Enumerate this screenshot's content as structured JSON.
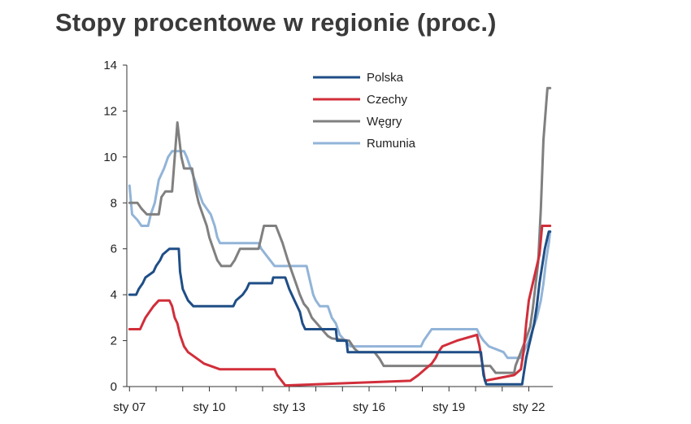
{
  "chart_data": {
    "type": "line",
    "title": "Stopy procentowe w regionie (proc.)",
    "xlabel": "",
    "ylabel": "",
    "x_range": [
      2007.0,
      2022.8
    ],
    "ylim": [
      0,
      14
    ],
    "yticks": [
      0,
      2,
      4,
      6,
      8,
      10,
      12,
      14
    ],
    "xticks": [
      {
        "label": "sty 07",
        "value": 2007.0
      },
      {
        "label": "sty 10",
        "value": 2010.0
      },
      {
        "label": "sty 13",
        "value": 2013.0
      },
      {
        "label": "sty 16",
        "value": 2016.0
      },
      {
        "label": "sty 19",
        "value": 2019.0
      },
      {
        "label": "sty 22",
        "value": 2022.0
      }
    ],
    "grid": false,
    "legend": "top-center",
    "series": [
      {
        "name": "Polska",
        "color": "#1f4e86",
        "points": [
          [
            2007.0,
            4.0
          ],
          [
            2007.25,
            4.0
          ],
          [
            2007.35,
            4.25
          ],
          [
            2007.5,
            4.5
          ],
          [
            2007.6,
            4.75
          ],
          [
            2007.9,
            5.0
          ],
          [
            2008.0,
            5.25
          ],
          [
            2008.15,
            5.5
          ],
          [
            2008.25,
            5.75
          ],
          [
            2008.5,
            6.0
          ],
          [
            2008.85,
            6.0
          ],
          [
            2008.9,
            5.0
          ],
          [
            2009.0,
            4.25
          ],
          [
            2009.1,
            4.0
          ],
          [
            2009.2,
            3.75
          ],
          [
            2009.4,
            3.5
          ],
          [
            2010.0,
            3.5
          ],
          [
            2010.9,
            3.5
          ],
          [
            2011.0,
            3.75
          ],
          [
            2011.25,
            4.0
          ],
          [
            2011.4,
            4.25
          ],
          [
            2011.5,
            4.5
          ],
          [
            2012.35,
            4.5
          ],
          [
            2012.4,
            4.75
          ],
          [
            2012.85,
            4.75
          ],
          [
            2013.0,
            4.25
          ],
          [
            2013.1,
            4.0
          ],
          [
            2013.2,
            3.75
          ],
          [
            2013.3,
            3.5
          ],
          [
            2013.4,
            3.25
          ],
          [
            2013.5,
            2.75
          ],
          [
            2013.6,
            2.5
          ],
          [
            2014.75,
            2.5
          ],
          [
            2014.8,
            2.0
          ],
          [
            2015.15,
            2.0
          ],
          [
            2015.2,
            1.5
          ],
          [
            2020.2,
            1.5
          ],
          [
            2020.25,
            1.0
          ],
          [
            2020.3,
            0.5
          ],
          [
            2020.4,
            0.1
          ],
          [
            2021.75,
            0.1
          ],
          [
            2021.8,
            0.5
          ],
          [
            2021.9,
            1.25
          ],
          [
            2022.0,
            1.75
          ],
          [
            2022.1,
            2.25
          ],
          [
            2022.2,
            2.75
          ],
          [
            2022.3,
            3.5
          ],
          [
            2022.4,
            4.5
          ],
          [
            2022.5,
            5.25
          ],
          [
            2022.6,
            6.0
          ],
          [
            2022.7,
            6.5
          ],
          [
            2022.75,
            6.75
          ],
          [
            2022.8,
            6.75
          ]
        ]
      },
      {
        "name": "Czechy",
        "color": "#d12e3a",
        "points": [
          [
            2007.0,
            2.5
          ],
          [
            2007.4,
            2.5
          ],
          [
            2007.5,
            2.75
          ],
          [
            2007.6,
            3.0
          ],
          [
            2007.75,
            3.25
          ],
          [
            2007.9,
            3.5
          ],
          [
            2008.1,
            3.75
          ],
          [
            2008.5,
            3.75
          ],
          [
            2008.6,
            3.5
          ],
          [
            2008.7,
            3.0
          ],
          [
            2008.8,
            2.75
          ],
          [
            2008.9,
            2.25
          ],
          [
            2009.05,
            1.75
          ],
          [
            2009.2,
            1.5
          ],
          [
            2009.5,
            1.25
          ],
          [
            2009.8,
            1.0
          ],
          [
            2010.4,
            0.75
          ],
          [
            2012.45,
            0.75
          ],
          [
            2012.55,
            0.5
          ],
          [
            2012.85,
            0.05
          ],
          [
            2017.55,
            0.25
          ],
          [
            2017.85,
            0.5
          ],
          [
            2018.1,
            0.75
          ],
          [
            2018.35,
            1.0
          ],
          [
            2018.5,
            1.25
          ],
          [
            2018.6,
            1.5
          ],
          [
            2018.75,
            1.75
          ],
          [
            2019.3,
            2.0
          ],
          [
            2020.05,
            2.25
          ],
          [
            2020.15,
            1.75
          ],
          [
            2020.25,
            1.0
          ],
          [
            2020.35,
            0.25
          ],
          [
            2021.45,
            0.5
          ],
          [
            2021.7,
            0.75
          ],
          [
            2021.8,
            1.5
          ],
          [
            2021.9,
            2.75
          ],
          [
            2022.0,
            3.75
          ],
          [
            2022.15,
            4.5
          ],
          [
            2022.4,
            5.75
          ],
          [
            2022.5,
            7.0
          ],
          [
            2022.8,
            7.0
          ]
        ]
      },
      {
        "name": "Węgry",
        "color": "#808080",
        "points": [
          [
            2007.0,
            8.0
          ],
          [
            2007.3,
            8.0
          ],
          [
            2007.45,
            7.75
          ],
          [
            2007.65,
            7.5
          ],
          [
            2008.1,
            7.5
          ],
          [
            2008.2,
            8.25
          ],
          [
            2008.35,
            8.5
          ],
          [
            2008.6,
            8.5
          ],
          [
            2008.8,
            11.5
          ],
          [
            2008.95,
            10.0
          ],
          [
            2009.05,
            9.5
          ],
          [
            2009.35,
            9.5
          ],
          [
            2009.5,
            8.5
          ],
          [
            2009.6,
            8.0
          ],
          [
            2009.75,
            7.5
          ],
          [
            2009.9,
            7.0
          ],
          [
            2010.0,
            6.5
          ],
          [
            2010.15,
            6.0
          ],
          [
            2010.3,
            5.5
          ],
          [
            2010.45,
            5.25
          ],
          [
            2010.8,
            5.25
          ],
          [
            2010.95,
            5.5
          ],
          [
            2011.05,
            5.75
          ],
          [
            2011.15,
            6.0
          ],
          [
            2011.85,
            6.0
          ],
          [
            2011.95,
            6.5
          ],
          [
            2012.05,
            7.0
          ],
          [
            2012.5,
            7.0
          ],
          [
            2012.75,
            6.25
          ],
          [
            2012.95,
            5.5
          ],
          [
            2013.1,
            5.0
          ],
          [
            2013.25,
            4.5
          ],
          [
            2013.4,
            4.0
          ],
          [
            2013.55,
            3.6
          ],
          [
            2013.7,
            3.4
          ],
          [
            2013.85,
            3.0
          ],
          [
            2014.0,
            2.8
          ],
          [
            2014.15,
            2.6
          ],
          [
            2014.3,
            2.4
          ],
          [
            2014.45,
            2.2
          ],
          [
            2014.6,
            2.1
          ],
          [
            2015.25,
            2.0
          ],
          [
            2015.45,
            1.65
          ],
          [
            2015.6,
            1.5
          ],
          [
            2016.2,
            1.5
          ],
          [
            2016.4,
            1.2
          ],
          [
            2016.55,
            0.9
          ],
          [
            2020.55,
            0.9
          ],
          [
            2020.65,
            0.75
          ],
          [
            2020.75,
            0.6
          ],
          [
            2021.45,
            0.6
          ],
          [
            2021.5,
            0.9
          ],
          [
            2021.6,
            1.2
          ],
          [
            2021.7,
            1.5
          ],
          [
            2021.8,
            1.8
          ],
          [
            2021.9,
            2.1
          ],
          [
            2022.05,
            2.6
          ],
          [
            2022.15,
            3.4
          ],
          [
            2022.25,
            4.4
          ],
          [
            2022.35,
            5.4
          ],
          [
            2022.45,
            7.75
          ],
          [
            2022.55,
            10.75
          ],
          [
            2022.7,
            13.0
          ],
          [
            2022.8,
            13.0
          ]
        ]
      },
      {
        "name": "Rumunia",
        "color": "#92b4d8",
        "points": [
          [
            2007.0,
            8.75
          ],
          [
            2007.1,
            7.5
          ],
          [
            2007.3,
            7.25
          ],
          [
            2007.45,
            7.0
          ],
          [
            2007.7,
            7.0
          ],
          [
            2007.8,
            7.5
          ],
          [
            2007.95,
            8.0
          ],
          [
            2008.1,
            9.0
          ],
          [
            2008.3,
            9.5
          ],
          [
            2008.45,
            10.0
          ],
          [
            2008.6,
            10.25
          ],
          [
            2009.05,
            10.25
          ],
          [
            2009.15,
            10.0
          ],
          [
            2009.3,
            9.5
          ],
          [
            2009.45,
            9.0
          ],
          [
            2009.6,
            8.5
          ],
          [
            2009.75,
            8.0
          ],
          [
            2010.05,
            7.5
          ],
          [
            2010.2,
            7.0
          ],
          [
            2010.3,
            6.5
          ],
          [
            2010.4,
            6.25
          ],
          [
            2011.85,
            6.25
          ],
          [
            2011.95,
            6.0
          ],
          [
            2012.45,
            5.25
          ],
          [
            2013.65,
            5.25
          ],
          [
            2013.8,
            4.5
          ],
          [
            2013.9,
            4.0
          ],
          [
            2014.0,
            3.75
          ],
          [
            2014.15,
            3.5
          ],
          [
            2014.45,
            3.5
          ],
          [
            2014.6,
            3.0
          ],
          [
            2014.75,
            2.75
          ],
          [
            2014.9,
            2.25
          ],
          [
            2015.1,
            2.0
          ],
          [
            2015.3,
            1.75
          ],
          [
            2017.95,
            1.75
          ],
          [
            2018.05,
            2.0
          ],
          [
            2018.2,
            2.25
          ],
          [
            2018.35,
            2.5
          ],
          [
            2020.05,
            2.5
          ],
          [
            2020.15,
            2.25
          ],
          [
            2020.3,
            2.0
          ],
          [
            2020.5,
            1.75
          ],
          [
            2021.05,
            1.5
          ],
          [
            2021.2,
            1.25
          ],
          [
            2021.7,
            1.25
          ],
          [
            2021.8,
            1.5
          ],
          [
            2021.9,
            1.75
          ],
          [
            2022.0,
            2.0
          ],
          [
            2022.15,
            2.5
          ],
          [
            2022.3,
            3.0
          ],
          [
            2022.45,
            3.75
          ],
          [
            2022.55,
            4.5
          ],
          [
            2022.65,
            5.5
          ],
          [
            2022.75,
            6.25
          ],
          [
            2022.8,
            6.75
          ]
        ]
      }
    ]
  }
}
